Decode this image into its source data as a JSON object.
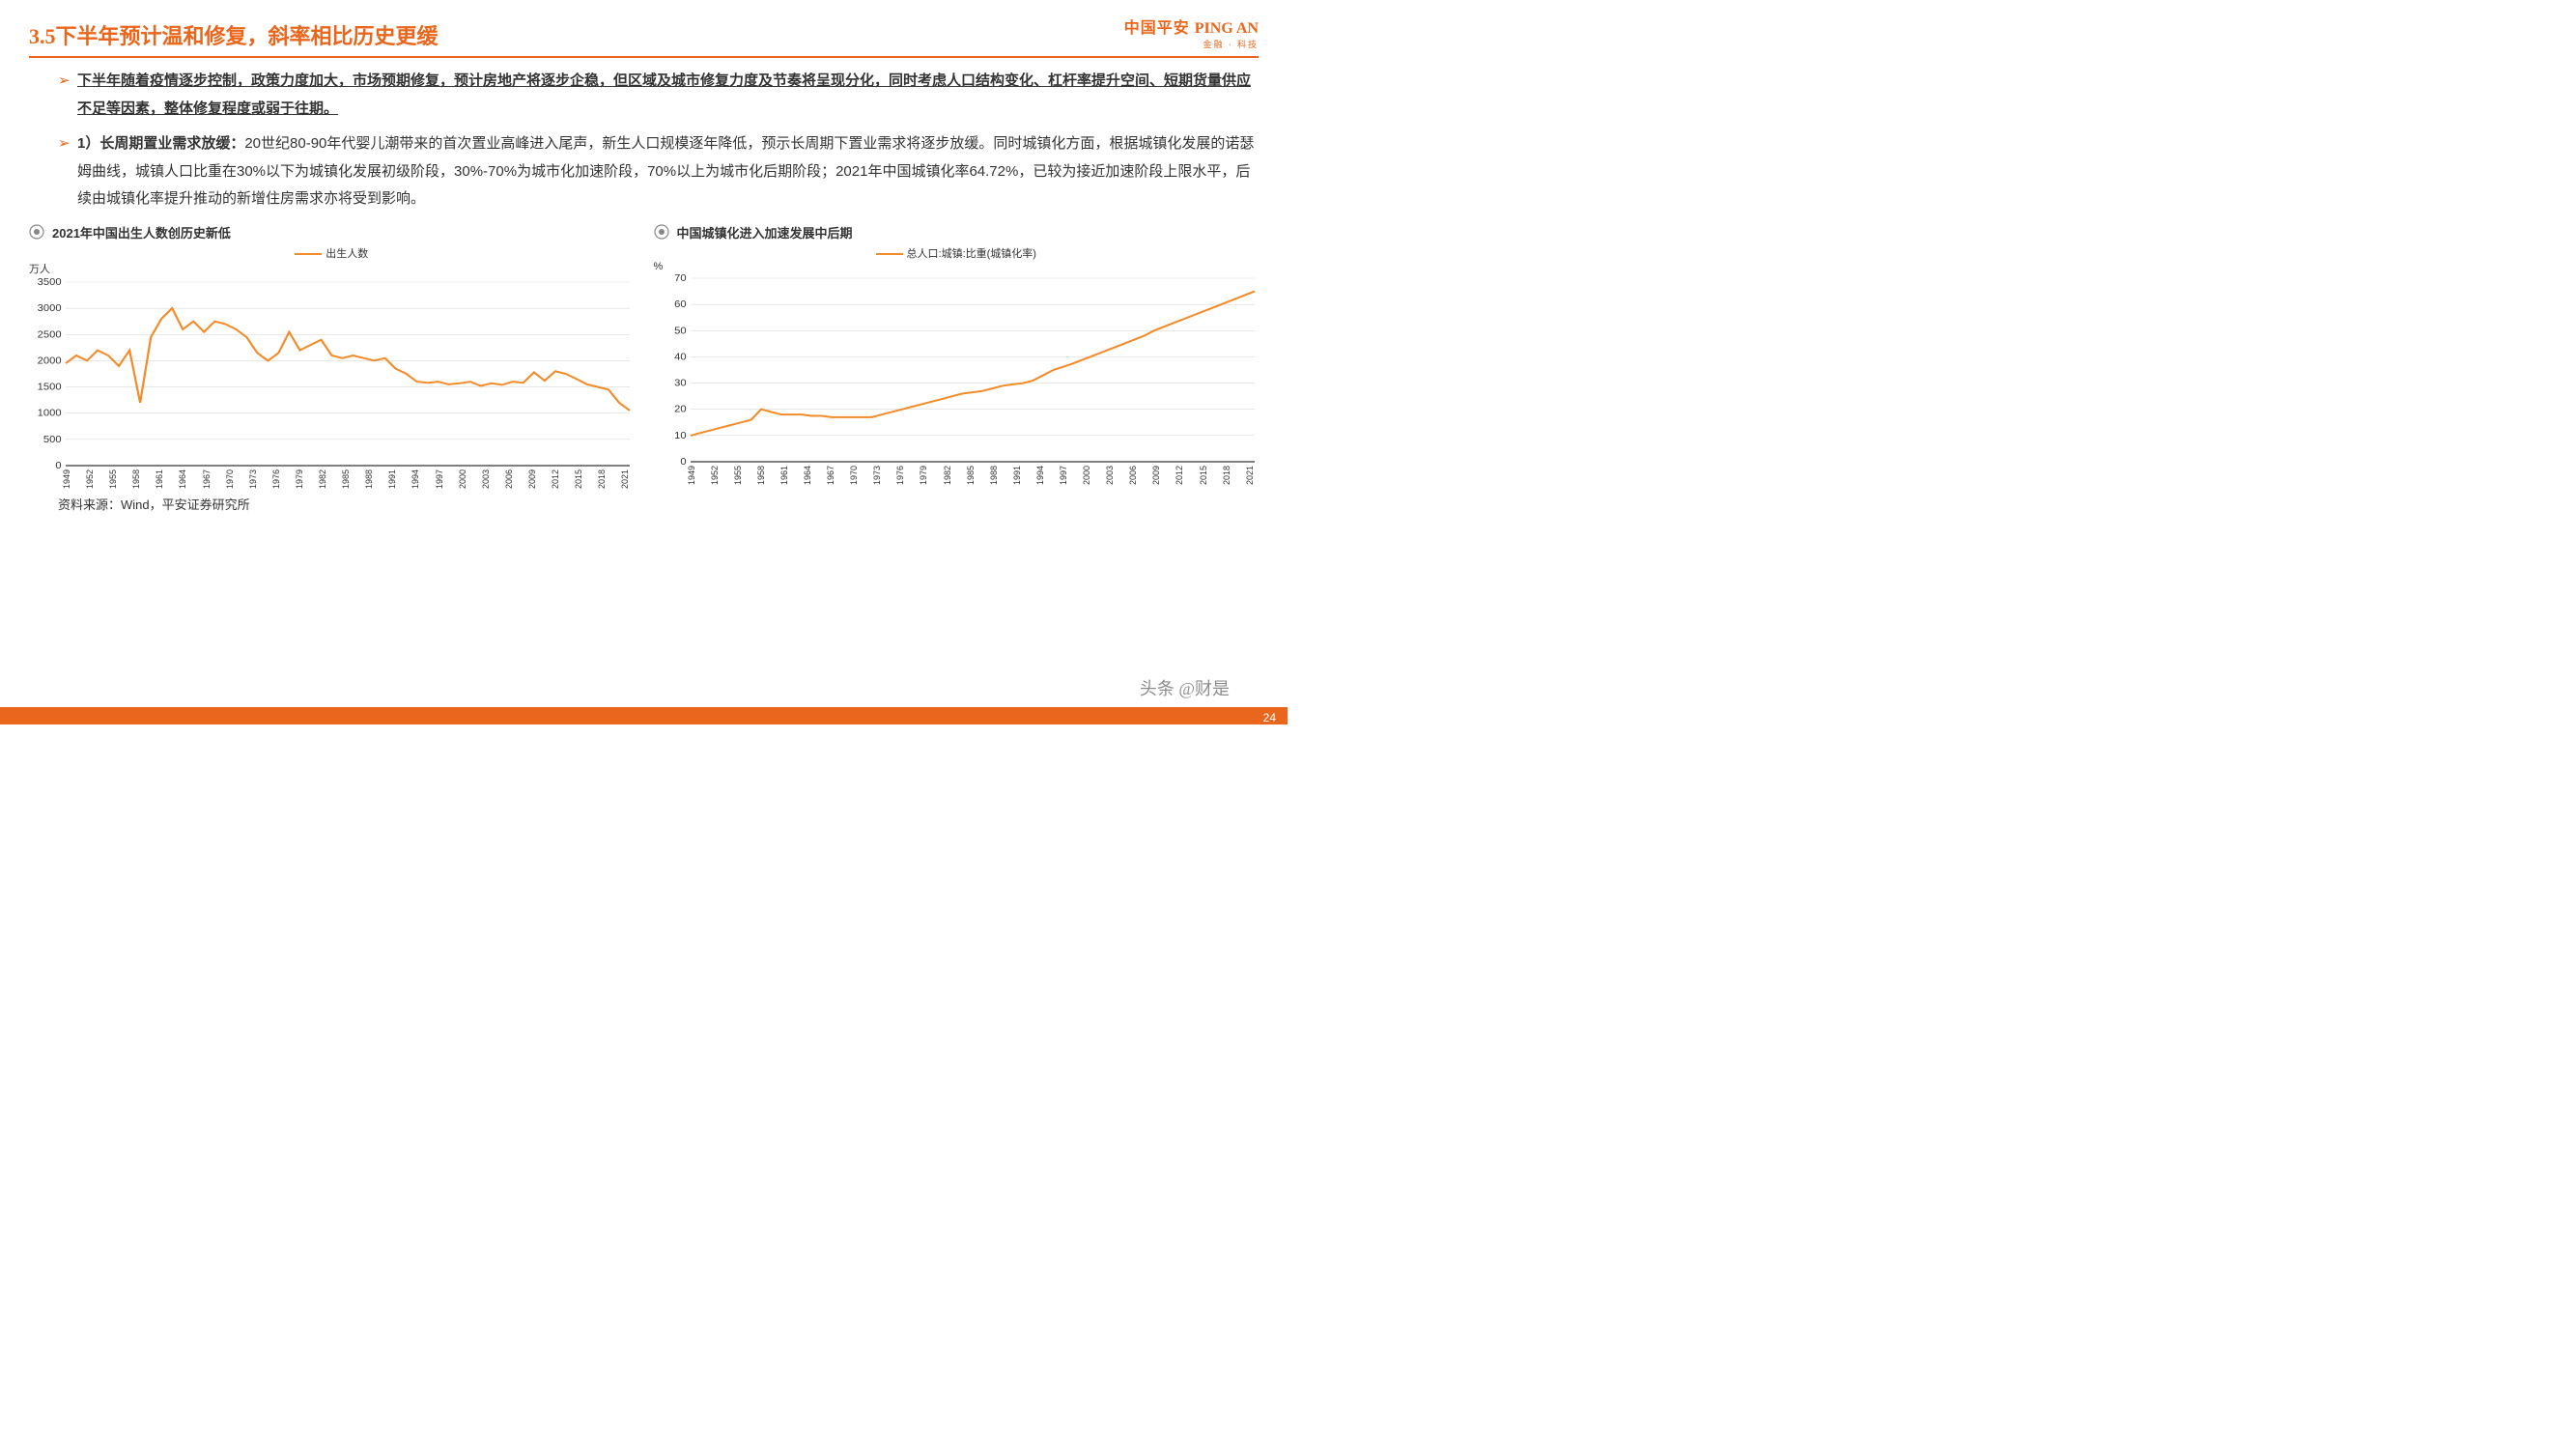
{
  "brand": {
    "cn": "中国平安",
    "en": "PING AN",
    "sub": "金融 · 科技"
  },
  "page": {
    "number": "24",
    "title": "3.5下半年预计温和修复，斜率相比历史更缓"
  },
  "bullets": {
    "b1": "下半年随着疫情逐步控制，政策力度加大，市场预期修复，预计房地产将逐步企稳，但区域及城市修复力度及节奏将呈现分化，同时考虑人口结构变化、杠杆率提升空间、短期货量供应不足等因素，整体修复程度或弱于往期。",
    "b2_prefix": "1）长周期置业需求放缓：",
    "b2_body": "20世纪80-90年代婴儿潮带来的首次置业高峰进入尾声，新生人口规模逐年降低，预示长周期下置业需求将逐步放缓。同时城镇化方面，根据城镇化发展的诺瑟姆曲线，城镇人口比重在30%以下为城镇化发展初级阶段，30%-70%为城市化加速阶段，70%以上为城市化后期阶段；2021年中国城镇化率64.72%，已较为接近加速阶段上限水平，后续由城镇化率提升推动的新增住房需求亦将受到影响。"
  },
  "chart1": {
    "title": "2021年中国出生人数创历史新低",
    "legend": "出生人数",
    "ylabel": "万人",
    "type": "line",
    "line_color": "#f28c2b",
    "line_width": 2,
    "background_color": "#ffffff",
    "grid_color": "#d9d9d9",
    "axis_color": "#000000",
    "ylim": [
      0,
      3500
    ],
    "ytick_step": 500,
    "yticks": [
      "0",
      "500",
      "1000",
      "1500",
      "2000",
      "2500",
      "3000",
      "3500"
    ],
    "years": [
      "1949",
      "1952",
      "1955",
      "1958",
      "1961",
      "1964",
      "1967",
      "1970",
      "1973",
      "1976",
      "1979",
      "1982",
      "1985",
      "1988",
      "1991",
      "1994",
      "1997",
      "2000",
      "2003",
      "2006",
      "2009",
      "2012",
      "2015",
      "2018",
      "2021"
    ],
    "values": [
      1950,
      2100,
      2000,
      2200,
      2100,
      1900,
      2200,
      1200,
      2450,
      2800,
      3000,
      2600,
      2750,
      2550,
      2750,
      2700,
      2600,
      2450,
      2150,
      2000,
      2150,
      2550,
      2200,
      2300,
      2400,
      2100,
      2050,
      2100,
      2050,
      2000,
      2050,
      1850,
      1750,
      1600,
      1580,
      1600,
      1550,
      1570,
      1600,
      1520,
      1570,
      1540,
      1600,
      1580,
      1780,
      1620,
      1800,
      1750,
      1650,
      1550,
      1500,
      1450,
      1200,
      1050
    ],
    "label_fontsize": 10
  },
  "chart2": {
    "title": "中国城镇化进入加速发展中后期",
    "legend": "总人口:城镇:比重(城镇化率)",
    "ylabel": "%",
    "type": "line",
    "line_color": "#f28c2b",
    "line_width": 2,
    "background_color": "#ffffff",
    "grid_color": "#d9d9d9",
    "axis_color": "#000000",
    "ylim": [
      0,
      70
    ],
    "ytick_step": 10,
    "yticks": [
      "0",
      "10",
      "20",
      "30",
      "40",
      "50",
      "60",
      "70"
    ],
    "years": [
      "1949",
      "1952",
      "1955",
      "1958",
      "1961",
      "1964",
      "1967",
      "1970",
      "1973",
      "1976",
      "1979",
      "1982",
      "1985",
      "1988",
      "1991",
      "1994",
      "1997",
      "2000",
      "2003",
      "2006",
      "2009",
      "2012",
      "2015",
      "2018",
      "2021"
    ],
    "values": [
      10,
      11,
      12,
      13,
      14,
      15,
      16,
      20,
      19,
      18,
      18,
      18,
      17.5,
      17.5,
      17,
      17,
      17,
      17,
      17,
      18,
      19,
      20,
      21,
      22,
      23,
      24,
      25,
      26,
      26.5,
      27,
      28,
      29,
      29.5,
      30,
      31,
      33,
      35,
      36.2,
      37.5,
      39,
      40.5,
      42,
      43.5,
      45,
      46.5,
      48,
      50,
      51.5,
      53,
      54.5,
      56,
      57.5,
      59,
      60.5,
      62,
      63.5,
      65
    ],
    "label_fontsize": 10
  },
  "source": "资料来源：Wind，平安证券研究所",
  "watermark": "头条 @财是"
}
